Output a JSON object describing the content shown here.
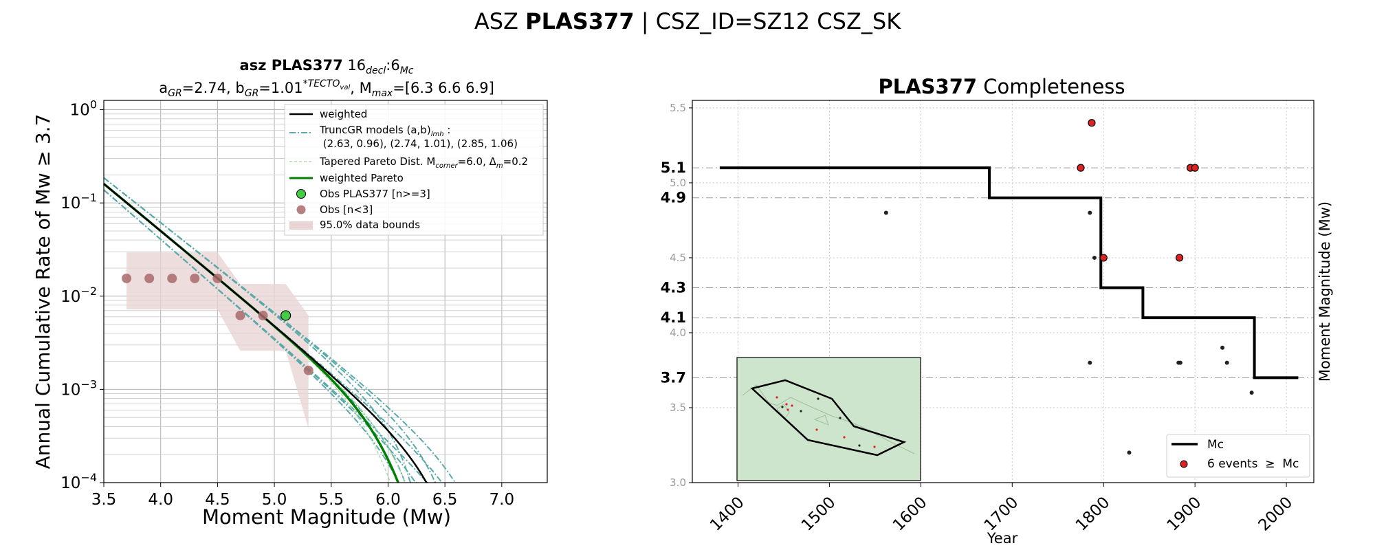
{
  "suptitle": {
    "prefix": "ASZ ",
    "bold": "PLAS377",
    "suffix": " | CSZ_ID=SZ12 CSZ_SK"
  },
  "chart_data": [
    {
      "type": "line",
      "title_line1": {
        "bold": "asz PLAS377",
        "decl": "16",
        "decl_sub": "decl",
        "mc": ":6",
        "mc_sub": "Mc"
      },
      "title_line2": {
        "a": "a",
        "a_sub": "GR",
        "a_val": "=2.74,  b",
        "b_sub": "GR",
        "b_val": "=1.01",
        "b_sup": "*TECTO",
        "b_sup_sub": "val",
        "mmax": ", M",
        "mmax_sub": "max",
        "mmax_val": "=[6.3 6.6 6.9]"
      },
      "xlabel": "Moment Magnitude (Mw)",
      "ylabel": "Annual Cumulative Rate of Mw  ≥  3.7",
      "xlim": [
        3.5,
        7.4
      ],
      "ylim_log10": [
        -4,
        0.1
      ],
      "yscale": "log",
      "grid": true,
      "x_ticks": [
        "3.5",
        "4.0",
        "4.5",
        "5.0",
        "5.5",
        "6.0",
        "6.5",
        "7.0"
      ],
      "y_ticks": [
        {
          "base": "10",
          "exp": "0"
        },
        {
          "base": "10",
          "exp": "−1"
        },
        {
          "base": "10",
          "exp": "−2"
        },
        {
          "base": "10",
          "exp": "−3"
        },
        {
          "base": "10",
          "exp": "−4"
        }
      ],
      "legend_position": "top-right",
      "legend": [
        {
          "label": "weighted"
        },
        {
          "label": "TruncGR models (a,b)",
          "sub": "lmh",
          "suffix": " :"
        },
        {
          "label": " (2.63, 0.96), (2.74, 1.01), (2.85, 1.06)"
        },
        {
          "label": "Tapered Pareto Dist. M",
          "sub": "corner",
          "suffix": "=6.0, Δ",
          "sub2": "m",
          "suffix2": "=0.2"
        },
        {
          "label": "weighted Pareto"
        },
        {
          "label": "Obs PLAS377 [n>=3]"
        },
        {
          "label": "Obs [n<3]"
        },
        {
          "label": "95.0% data bounds"
        }
      ],
      "gr_models": [
        {
          "a": 2.63,
          "b": 0.96
        },
        {
          "a": 2.74,
          "b": 1.01
        },
        {
          "a": 2.85,
          "b": 1.06
        }
      ],
      "mmax": [
        6.3,
        6.6,
        6.9
      ],
      "mmin": 3.7,
      "series": {
        "obs_n_ge_3": [
          {
            "x": 5.1,
            "y": 0.0062
          }
        ],
        "obs_n_lt_3": [
          {
            "x": 3.7,
            "y": 0.0155
          },
          {
            "x": 3.9,
            "y": 0.0155
          },
          {
            "x": 4.1,
            "y": 0.0155
          },
          {
            "x": 4.3,
            "y": 0.0155
          },
          {
            "x": 4.5,
            "y": 0.0155
          },
          {
            "x": 4.7,
            "y": 0.0062
          },
          {
            "x": 4.9,
            "y": 0.0062
          },
          {
            "x": 5.3,
            "y": 0.0016
          }
        ],
        "bounds": {
          "x": [
            3.7,
            4.5,
            4.7,
            5.1,
            5.3
          ],
          "upper": [
            0.0295,
            0.0295,
            0.0135,
            0.0135,
            0.0062
          ],
          "lower": [
            0.0072,
            0.0072,
            0.0026,
            0.0026,
            0.00038
          ]
        }
      },
      "colors": {
        "weighted": "#000000",
        "trunc": "#5aaaaa",
        "pareto": "#aaddaa",
        "wpareto": "#008000",
        "obs_ge3": "#44cc44",
        "obs_lt3": "#a86a6a",
        "bounds": "#e8d4d4"
      }
    },
    {
      "type": "line",
      "title_bold": "PLAS377",
      "title_rest": " Completeness",
      "xlabel": "Year",
      "ylabel": "Moment Magnitude (Mw)",
      "xlim": [
        1350,
        2030
      ],
      "ylim": [
        3.0,
        5.55
      ],
      "grid": true,
      "x_ticks": [
        "1400",
        "1500",
        "1600",
        "1700",
        "1800",
        "1900",
        "2000"
      ],
      "y_ticks_minor": [
        "3.0",
        "3.5",
        "4.0",
        "4.5",
        "5.0",
        "5.5"
      ],
      "y_ticks_mc": [
        "3.7",
        "4.1",
        "4.3",
        "4.9",
        "5.1"
      ],
      "legend_position": "bottom-right",
      "legend": [
        {
          "label": "Mc"
        },
        {
          "label": "6 events  ≥  Mc"
        }
      ],
      "mc_steps": [
        {
          "year": 1380,
          "mc": 5.1
        },
        {
          "year": 1675,
          "mc": 4.9
        },
        {
          "year": 1797,
          "mc": 4.3
        },
        {
          "year": 1843,
          "mc": 4.1
        },
        {
          "year": 1965,
          "mc": 3.7
        },
        {
          "year": 2013,
          "mc": 3.7
        }
      ],
      "events_above_mc": [
        {
          "year": 1787,
          "mw": 5.4
        },
        {
          "year": 1775,
          "mw": 5.1
        },
        {
          "year": 1895,
          "mw": 5.1
        },
        {
          "year": 1900,
          "mw": 5.1
        },
        {
          "year": 1800,
          "mw": 4.5
        },
        {
          "year": 1883,
          "mw": 4.5
        }
      ],
      "events_below_mc": [
        {
          "year": 1562,
          "mw": 4.8
        },
        {
          "year": 1785,
          "mw": 4.8
        },
        {
          "year": 1790,
          "mw": 4.5
        },
        {
          "year": 1785,
          "mw": 3.8
        },
        {
          "year": 1882,
          "mw": 3.8
        },
        {
          "year": 1884,
          "mw": 3.8
        },
        {
          "year": 1930,
          "mw": 3.9
        },
        {
          "year": 1935,
          "mw": 3.8
        },
        {
          "year": 1962,
          "mw": 3.6
        },
        {
          "year": 1828,
          "mw": 3.2
        }
      ],
      "colors": {
        "mc": "#000000",
        "event": "#dd2222",
        "small_event": "#222222",
        "map_land": "#cde5cd"
      }
    }
  ]
}
